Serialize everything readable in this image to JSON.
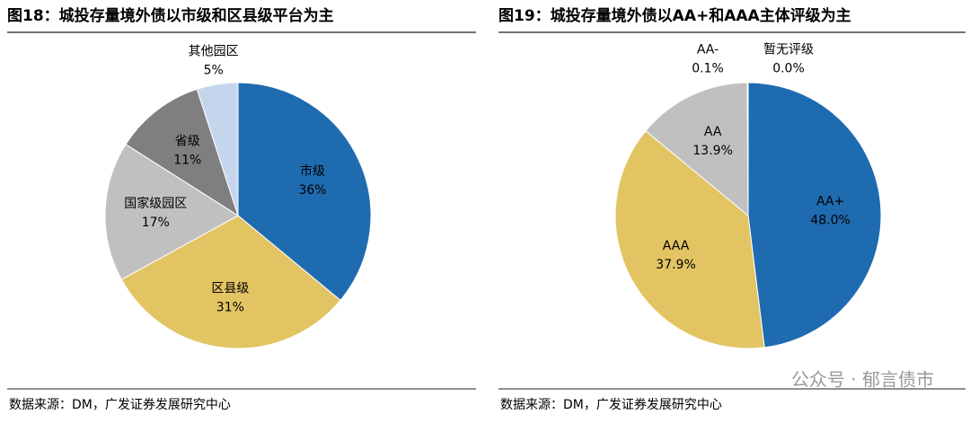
{
  "chart_data": [
    {
      "type": "pie",
      "title": "图18：城投存量境外债以市级和区县级平台为主",
      "categories": [
        "市级",
        "区县级",
        "国家级园区",
        "省级",
        "其他园区"
      ],
      "values": [
        36,
        31,
        17,
        11,
        5
      ],
      "value_labels": [
        "36%",
        "31%",
        "17%",
        "11%",
        "5%"
      ],
      "colors": [
        "#1f6bb0",
        "#e3c463",
        "#c0c0c0",
        "#7f7f7f",
        "#c5d6ec"
      ],
      "source": "数据来源：DM，广发证券发展研究中心"
    },
    {
      "type": "pie",
      "title": "图19：城投存量境外债以AA+和AAA主体评级为主",
      "categories": [
        "AA+",
        "AAA",
        "AA",
        "AA-",
        "暂无评级"
      ],
      "values": [
        48.0,
        37.9,
        13.9,
        0.1,
        0.0
      ],
      "value_labels": [
        "48.0%",
        "37.9%",
        "13.9%",
        "0.1%",
        "0.0%"
      ],
      "colors": [
        "#1f6bb0",
        "#e3c463",
        "#c0c0c0",
        "#7f7f7f",
        "#c5d6ec"
      ],
      "source": "数据来源：DM，广发证券发展研究中心"
    }
  ],
  "watermark": "公众号 · 郁言债市"
}
